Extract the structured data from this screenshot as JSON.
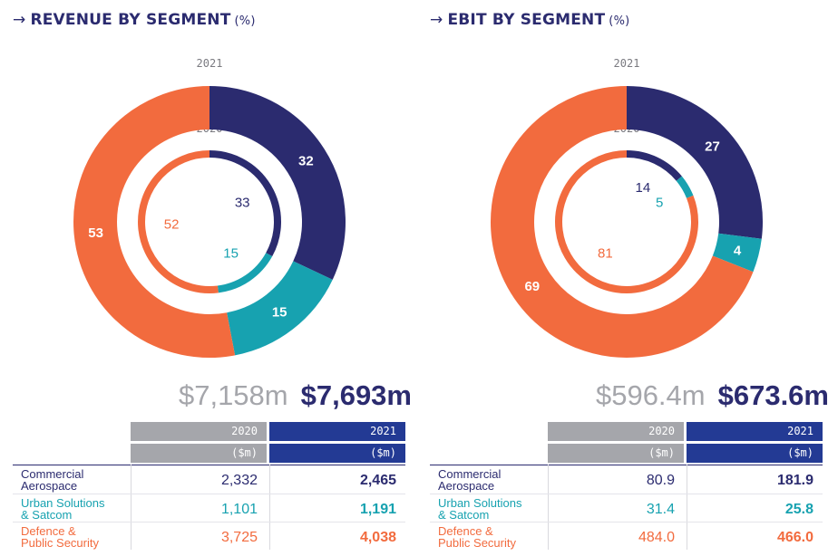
{
  "colors": {
    "navy": "#2b2b6f",
    "teal": "#17a2b0",
    "orange": "#f26b3e",
    "grey": "#a5a6ab",
    "header_blue": "#233a94"
  },
  "panels": {
    "revenue": {
      "arrow": "→",
      "title": "REVENUE BY SEGMENT",
      "unit": "(%)",
      "total_2020": "$7,158m",
      "total_2021": "$7,693m",
      "year_2020": "2020",
      "year_2021": "2021",
      "unit_2020": "($m)",
      "unit_2021": "($m)",
      "rows": [
        {
          "label_line1": "Commercial",
          "label_line2": "Aerospace",
          "v2020": "2,332",
          "v2021": "2,465"
        },
        {
          "label_line1": "Urban Solutions",
          "label_line2": "& Satcom",
          "v2020": "1,101",
          "v2021": "1,191"
        },
        {
          "label_line1": "Defence &",
          "label_line2": "Public Security",
          "v2020": "3,725",
          "v2021": "4,038"
        }
      ]
    },
    "ebit": {
      "arrow": "→",
      "title": "EBIT BY SEGMENT",
      "unit": "(%)",
      "total_2020": "$596.4m",
      "total_2021": "$673.6m",
      "year_2020": "2020",
      "year_2021": "2021",
      "unit_2020": "($m)",
      "unit_2021": "($m)",
      "rows": [
        {
          "label_line1": "Commercial",
          "label_line2": "Aerospace",
          "v2020": "80.9",
          "v2021": "181.9"
        },
        {
          "label_line1": "Urban Solutions",
          "label_line2": "& Satcom",
          "v2020": "31.4",
          "v2021": "25.8"
        },
        {
          "label_line1": "Defence &",
          "label_line2": "Public Security",
          "v2020": "484.0",
          "v2021": "466.0"
        }
      ]
    }
  },
  "chart_data": [
    {
      "type": "pie",
      "title": "REVENUE BY SEGMENT (%)",
      "categories": [
        "Commercial Aerospace",
        "Urban Solutions & Satcom",
        "Defence & Public Security"
      ],
      "series": [
        {
          "name": "2021",
          "values": [
            32,
            15,
            53
          ]
        },
        {
          "name": "2020",
          "values": [
            33,
            15,
            52
          ]
        }
      ]
    },
    {
      "type": "pie",
      "title": "EBIT BY SEGMENT (%)",
      "categories": [
        "Commercial Aerospace",
        "Urban Solutions & Satcom",
        "Defence & Public Security"
      ],
      "series": [
        {
          "name": "2021",
          "values": [
            27,
            4,
            69
          ]
        },
        {
          "name": "2020",
          "values": [
            14,
            5,
            81
          ]
        }
      ]
    }
  ]
}
